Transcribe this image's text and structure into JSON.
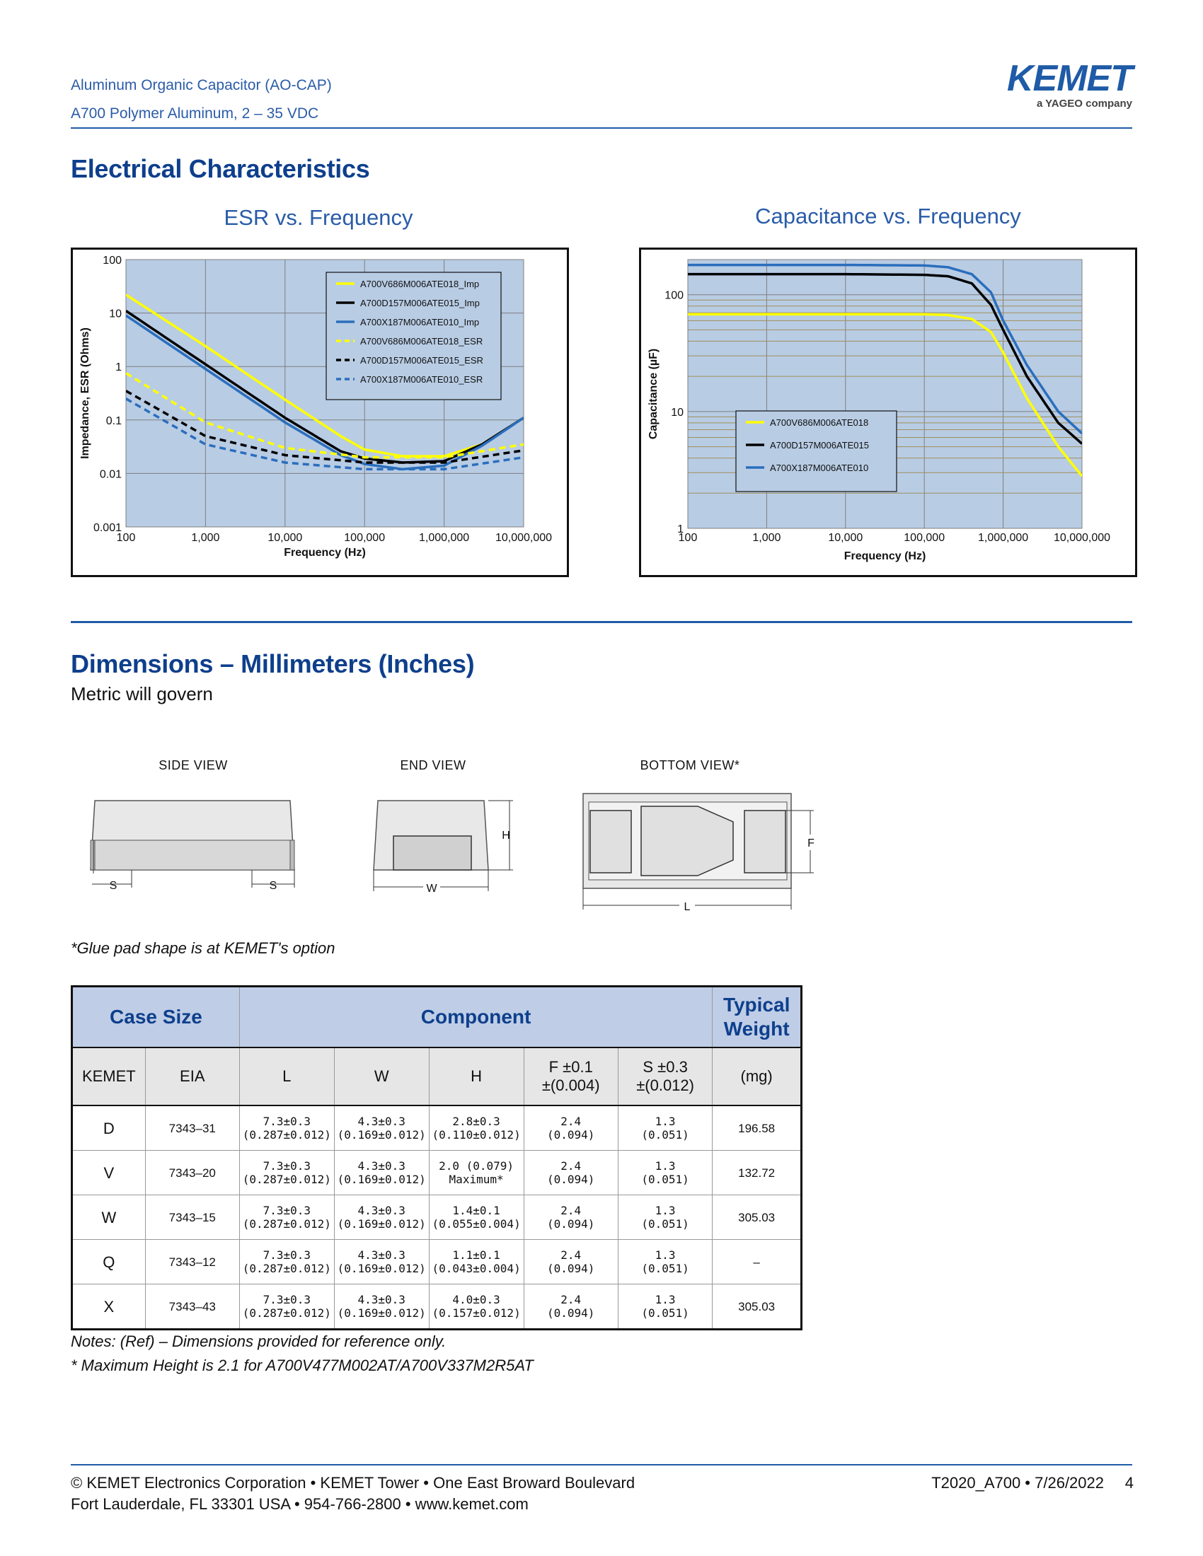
{
  "header": {
    "line1": "Aluminum Organic Capacitor (AO-CAP)",
    "line2": "A700 Polymer Aluminum, 2 – 35 VDC",
    "logo_text": "KEMET",
    "logo_sub": "a YAGEO company"
  },
  "section1": {
    "title": "Electrical Characteristics"
  },
  "section2": {
    "title": "Dimensions – Millimeters (Inches)",
    "subtitle": "Metric will govern"
  },
  "colors": {
    "brand_blue": "#1f5ba6",
    "plot_bg": "#b8cce4",
    "yellow": "#ffff00",
    "black": "#000000",
    "blue": "#2a6ebd"
  },
  "chart_data": [
    {
      "type": "line",
      "title": "ESR vs. Frequency",
      "xlabel": "Frequency (Hz)",
      "ylabel": "Impedance, ESR (Ohms)",
      "xscale": "log",
      "yscale": "log",
      "xlim": [
        100,
        10000000
      ],
      "ylim": [
        0.001,
        100
      ],
      "x_ticks": [
        "100",
        "1,000",
        "10,000",
        "100,000",
        "1,000,000",
        "10,000,000"
      ],
      "y_ticks": [
        "0.001",
        "0.01",
        "0.1",
        "1",
        "10",
        "100"
      ],
      "grid": true,
      "legend_position": "top-right",
      "series": [
        {
          "name": "A700V686M006ATE018_Imp",
          "color": "#ffff00",
          "style": "solid",
          "x": [
            100,
            1000,
            10000,
            50000,
            100000,
            300000,
            1000000,
            3000000,
            10000000
          ],
          "y": [
            22,
            2.4,
            0.24,
            0.05,
            0.028,
            0.021,
            0.021,
            0.035,
            0.11
          ]
        },
        {
          "name": "A700D157M006ATE015_Imp",
          "color": "#000000",
          "style": "solid",
          "x": [
            100,
            1000,
            10000,
            50000,
            100000,
            300000,
            1000000,
            3000000,
            10000000
          ],
          "y": [
            11,
            1.1,
            0.11,
            0.026,
            0.019,
            0.016,
            0.017,
            0.035,
            0.11
          ]
        },
        {
          "name": "A700X187M006ATE010_Imp",
          "color": "#2a6ebd",
          "style": "solid",
          "x": [
            100,
            1000,
            10000,
            50000,
            100000,
            300000,
            1000000,
            3000000,
            10000000
          ],
          "y": [
            9,
            0.9,
            0.09,
            0.022,
            0.015,
            0.012,
            0.014,
            0.033,
            0.11
          ]
        },
        {
          "name": "A700V686M006ATE018_ESR",
          "color": "#ffff00",
          "style": "dashed",
          "x": [
            100,
            1000,
            10000,
            100000,
            1000000,
            10000000
          ],
          "y": [
            0.75,
            0.09,
            0.03,
            0.02,
            0.02,
            0.035
          ]
        },
        {
          "name": "A700D157M006ATE015_ESR",
          "color": "#000000",
          "style": "dashed",
          "x": [
            100,
            1000,
            10000,
            100000,
            1000000,
            10000000
          ],
          "y": [
            0.35,
            0.05,
            0.022,
            0.016,
            0.016,
            0.027
          ]
        },
        {
          "name": "A700X187M006ATE010_ESR",
          "color": "#2a6ebd",
          "style": "dashed",
          "x": [
            100,
            1000,
            10000,
            100000,
            1000000,
            10000000
          ],
          "y": [
            0.25,
            0.035,
            0.016,
            0.012,
            0.012,
            0.02
          ]
        }
      ]
    },
    {
      "type": "line",
      "title": "Capacitance vs. Frequency",
      "xlabel": "Frequency (Hz)",
      "ylabel": "Capacitance (µF)",
      "xscale": "log",
      "yscale": "log",
      "xlim": [
        100,
        10000000
      ],
      "ylim": [
        1,
        200
      ],
      "x_ticks": [
        "100",
        "1,000",
        "10,000",
        "100,000",
        "1,000,000",
        "10,000,000"
      ],
      "y_ticks": [
        "1",
        "10",
        "100"
      ],
      "grid": true,
      "legend_position": "center-left",
      "series": [
        {
          "name": "A700V686M006ATE018",
          "color": "#ffff00",
          "x": [
            100,
            10000,
            100000,
            200000,
            400000,
            700000,
            1000000,
            2000000,
            5000000,
            10000000
          ],
          "y": [
            68,
            68,
            68,
            67,
            62,
            48,
            32,
            13,
            5,
            2.8
          ]
        },
        {
          "name": "A700D157M006ATE015",
          "color": "#000000",
          "x": [
            100,
            10000,
            100000,
            200000,
            400000,
            700000,
            1000000,
            2000000,
            5000000,
            10000000
          ],
          "y": [
            150,
            150,
            148,
            144,
            125,
            82,
            50,
            20,
            8,
            5.3
          ]
        },
        {
          "name": "A700X187M006ATE010",
          "color": "#2a6ebd",
          "x": [
            100,
            10000,
            100000,
            200000,
            400000,
            700000,
            1000000,
            2000000,
            5000000,
            10000000
          ],
          "y": [
            180,
            180,
            178,
            172,
            150,
            105,
            60,
            25,
            10,
            6.5
          ]
        }
      ]
    }
  ],
  "views": {
    "side": "SIDE VIEW",
    "end": "END VIEW",
    "bottom": "BOTTOM VIEW*",
    "dim_s": "S",
    "dim_w": "W",
    "dim_h": "H",
    "dim_f": "F",
    "dim_l": "L"
  },
  "glue_note": "*Glue pad shape is at KEMET's option",
  "table": {
    "head1": {
      "case_size": "Case Size",
      "component": "Component",
      "typical_weight": "Typical Weight"
    },
    "head2": {
      "kemet": "KEMET",
      "eia": "EIA",
      "l": "L",
      "w": "W",
      "h": "H",
      "f1": "F ±0.1",
      "f2": "±(0.004)",
      "s1": "S ±0.3",
      "s2": "±(0.012)",
      "mg": "(mg)"
    },
    "rows": [
      {
        "kemet": "D",
        "eia": "7343–31",
        "l1": "7.3±0.3",
        "l2": "(0.287±0.012)",
        "w1": "4.3±0.3",
        "w2": "(0.169±0.012)",
        "h1": "2.8±0.3",
        "h2": "(0.110±0.012)",
        "f1": "2.4",
        "f2": "(0.094)",
        "s1": "1.3",
        "s2": "(0.051)",
        "wt": "196.58"
      },
      {
        "kemet": "V",
        "eia": "7343–20",
        "l1": "7.3±0.3",
        "l2": "(0.287±0.012)",
        "w1": "4.3±0.3",
        "w2": "(0.169±0.012)",
        "h1": "2.0 (0.079)",
        "h2": "Maximum*",
        "f1": "2.4",
        "f2": "(0.094)",
        "s1": "1.3",
        "s2": "(0.051)",
        "wt": "132.72"
      },
      {
        "kemet": "W",
        "eia": "7343–15",
        "l1": "7.3±0.3",
        "l2": "(0.287±0.012)",
        "w1": "4.3±0.3",
        "w2": "(0.169±0.012)",
        "h1": "1.4±0.1",
        "h2": "(0.055±0.004)",
        "f1": "2.4",
        "f2": "(0.094)",
        "s1": "1.3",
        "s2": "(0.051)",
        "wt": "305.03"
      },
      {
        "kemet": "Q",
        "eia": "7343–12",
        "l1": "7.3±0.3",
        "l2": "(0.287±0.012)",
        "w1": "4.3±0.3",
        "w2": "(0.169±0.012)",
        "h1": "1.1±0.1",
        "h2": "(0.043±0.004)",
        "f1": "2.4",
        "f2": "(0.094)",
        "s1": "1.3",
        "s2": "(0.051)",
        "wt": "–"
      },
      {
        "kemet": "X",
        "eia": "7343–43",
        "l1": "7.3±0.3",
        "l2": "(0.287±0.012)",
        "w1": "4.3±0.3",
        "w2": "(0.169±0.012)",
        "h1": "4.0±0.3",
        "h2": "(0.157±0.012)",
        "f1": "2.4",
        "f2": "(0.094)",
        "s1": "1.3",
        "s2": "(0.051)",
        "wt": "305.03"
      }
    ]
  },
  "notes": {
    "line1": "Notes: (Ref) – Dimensions provided for reference only.",
    "line2": "* Maximum Height is 2.1 for A700V477M002AT/A700V337M2R5AT"
  },
  "footer": {
    "line1": "© KEMET Electronics Corporation • KEMET Tower • One East Broward Boulevard",
    "line2": "Fort Lauderdale, FL 33301 USA • 954-766-2800 • www.kemet.com",
    "doc_id": "T2020_A700 • 7/26/2022",
    "page": "4"
  }
}
